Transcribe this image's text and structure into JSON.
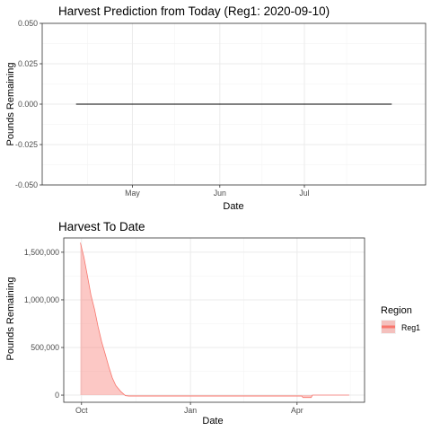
{
  "chart_data": [
    {
      "type": "line",
      "title": "Harvest Prediction from Today (Reg1: 2020-09-10)",
      "xlabel": "Date",
      "ylabel": "Pounds Remaining",
      "x_tick_labels": [
        "May",
        "Jun",
        "Jul"
      ],
      "y_tick_labels": [
        "0.050",
        "0.025",
        "0.000",
        "-0.025",
        "-0.050"
      ],
      "ylim": [
        -0.05,
        0.05
      ],
      "grid": true,
      "series": [
        {
          "color": "#000000",
          "points": [
            [
              "2021-04-11",
              0
            ],
            [
              "2021-08-01",
              0
            ]
          ]
        }
      ]
    },
    {
      "type": "area",
      "title": "Harvest To Date",
      "xlabel": "Date",
      "ylabel": "Pounds Remaining",
      "x_tick_labels": [
        "Oct",
        "Jan",
        "Apr"
      ],
      "y_tick_labels": [
        "1,500,000",
        "1,000,000",
        "500,000",
        "0"
      ],
      "ylim": [
        -75000,
        1650000
      ],
      "grid": true,
      "legend": {
        "title": "Region",
        "position": "right",
        "entries": [
          {
            "name": "Reg1",
            "color": "#f8766d"
          }
        ]
      },
      "series": [
        {
          "name": "Reg1",
          "color": "#f8766d",
          "fill": "#f8766d",
          "points": [
            [
              "2020-09-30",
              1600000
            ],
            [
              "2020-10-03",
              1450000
            ],
            [
              "2020-10-06",
              1250000
            ],
            [
              "2020-10-09",
              1050000
            ],
            [
              "2020-10-12",
              900000
            ],
            [
              "2020-10-15",
              720000
            ],
            [
              "2020-10-18",
              560000
            ],
            [
              "2020-10-21",
              430000
            ],
            [
              "2020-10-24",
              300000
            ],
            [
              "2020-10-27",
              180000
            ],
            [
              "2020-10-30",
              100000
            ],
            [
              "2020-11-03",
              40000
            ],
            [
              "2020-11-07",
              -5000
            ],
            [
              "2020-11-10",
              -10000
            ],
            [
              "2021-04-05",
              -10000
            ],
            [
              "2021-04-06",
              -25000
            ],
            [
              "2021-04-13",
              -25000
            ],
            [
              "2021-04-14",
              0
            ],
            [
              "2021-05-15",
              0
            ]
          ]
        }
      ]
    }
  ]
}
